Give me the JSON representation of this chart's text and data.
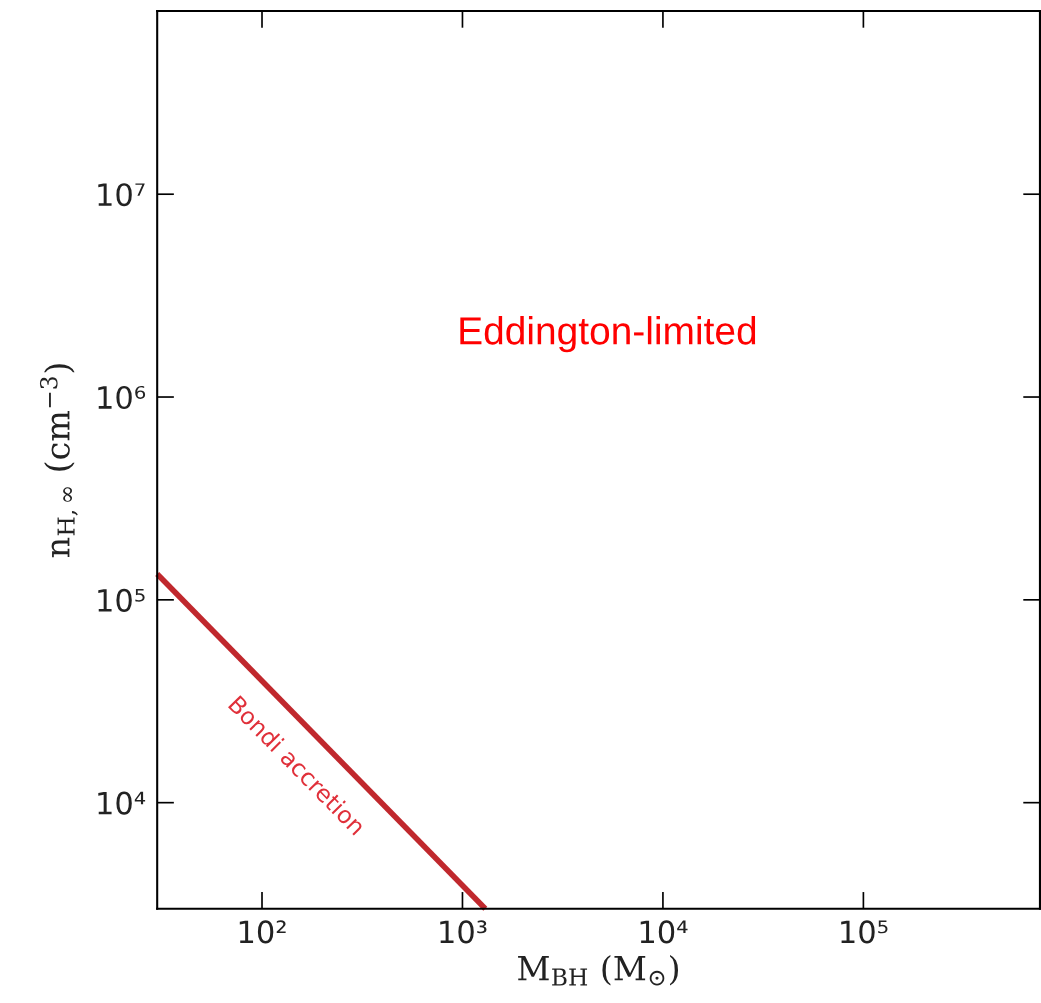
{
  "chart_data": {
    "type": "line",
    "log": "xy",
    "xlabel": "M$_{BH}$ (M$_{⊙}$)",
    "ylabel": "n$_{H,∞}$ (cm$^{−3}$)",
    "xlim": [
      30,
      760000
    ],
    "ylim": [
      3000,
      80000000
    ],
    "xticks": [
      {
        "value": 100,
        "label": "10²"
      },
      {
        "value": 1000,
        "label": "10³"
      },
      {
        "value": 10000,
        "label": "10⁴"
      },
      {
        "value": 100000,
        "label": "10⁵"
      }
    ],
    "yticks": [
      {
        "value": 10000,
        "label": "10⁴"
      },
      {
        "value": 100000,
        "label": "10⁵"
      },
      {
        "value": 1000000,
        "label": "10⁶"
      },
      {
        "value": 10000000,
        "label": "10⁷"
      }
    ],
    "series": [
      {
        "name": "Bondi accretion",
        "color": "#c0282d",
        "x": [
          30,
          1300
        ],
        "values": [
          134000,
          3000
        ]
      }
    ],
    "annotations": [
      "Eddington-limited"
    ],
    "grid": false,
    "legend": false
  }
}
